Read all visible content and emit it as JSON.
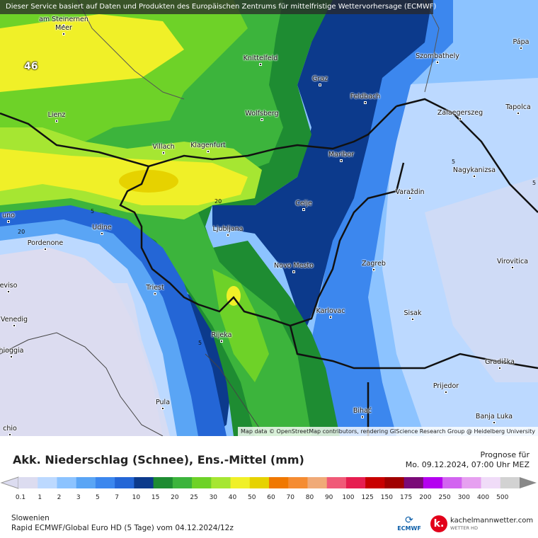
{
  "banner": "Dieser Service basiert auf Daten und Produkten des Europäischen Zentrums für mittelfristige Wettervorhersage (ECMWF)",
  "attribution": "Map data © OpenStreetMap contributors, rendering GIScience Research Group @ Heidelberg University",
  "marker": "46",
  "cities": [
    {
      "name": "am Steinernen",
      "id": "am-steinernen"
    },
    {
      "name": "Meer",
      "id": "meer"
    },
    {
      "name": "Knittelfeld",
      "id": "knittelfeld"
    },
    {
      "name": "Szombathely",
      "id": "szombathely"
    },
    {
      "name": "Pápa",
      "id": "papa"
    },
    {
      "name": "Graz",
      "id": "graz"
    },
    {
      "name": "Feldbach",
      "id": "feldbach"
    },
    {
      "name": "Lienz",
      "id": "lienz"
    },
    {
      "name": "Wolfsberg",
      "id": "wolfsberg"
    },
    {
      "name": "Zalaegerszeg",
      "id": "zalaegerszeg"
    },
    {
      "name": "Tapolca",
      "id": "tapolca"
    },
    {
      "name": "Villach",
      "id": "villach"
    },
    {
      "name": "Klagenfurt",
      "id": "klagenfurt"
    },
    {
      "name": "Maribor",
      "id": "maribor"
    },
    {
      "name": "Nagykanizsa",
      "id": "nagykanizsa"
    },
    {
      "name": "Varaždin",
      "id": "varazdin"
    },
    {
      "name": "Celje",
      "id": "celje"
    },
    {
      "name": "uno",
      "id": "uno"
    },
    {
      "name": "Udine",
      "id": "udine"
    },
    {
      "name": "Ljubljana",
      "id": "ljubljana"
    },
    {
      "name": "Pordenone",
      "id": "pordenone"
    },
    {
      "name": "Novo Mesto",
      "id": "novo-mesto"
    },
    {
      "name": "Zagreb",
      "id": "zagreb"
    },
    {
      "name": "Virovitica",
      "id": "virovitica"
    },
    {
      "name": "eviso",
      "id": "eviso"
    },
    {
      "name": "Triest",
      "id": "triest"
    },
    {
      "name": "Karlovac",
      "id": "karlovac"
    },
    {
      "name": "Sisak",
      "id": "sisak"
    },
    {
      "name": "Venedig",
      "id": "venedig"
    },
    {
      "name": "Rijeka",
      "id": "rijeka"
    },
    {
      "name": "Gradiška",
      "id": "gradiska"
    },
    {
      "name": "hioggia",
      "id": "hioggia"
    },
    {
      "name": "Prijedor",
      "id": "prijedor"
    },
    {
      "name": "Pula",
      "id": "pula"
    },
    {
      "name": "Bihać",
      "id": "bihac"
    },
    {
      "name": "Banja Luka",
      "id": "banja-luka"
    },
    {
      "name": "chio",
      "id": "chio"
    }
  ],
  "isolines": [
    {
      "label": "20",
      "id": "iso-20-a"
    },
    {
      "label": "20",
      "id": "iso-20-b"
    },
    {
      "label": "5",
      "id": "iso-5-a"
    },
    {
      "label": "5",
      "id": "iso-5-b"
    },
    {
      "label": "5",
      "id": "iso-5-c"
    },
    {
      "label": "5",
      "id": "iso-5-d"
    }
  ],
  "footer": {
    "title": "Akk. Niederschlag (Schnee), Ens.-Mittel (mm)",
    "prognose_label": "Prognose für",
    "prognose_date": "Mo. 09.12.2024, 07:00 Uhr MEZ",
    "region": "Slowenien",
    "run": "Rapid ECMWF/Global Euro HD  (5 Tage)  vom  04.12.2024/12z",
    "ecmwf_label": "ECMWF",
    "brand_name": "kachelmannwetter.com",
    "brand_sub": "WETTER HD"
  },
  "legend": {
    "ticks": [
      "0.1",
      "1",
      "2",
      "3",
      "5",
      "7",
      "10",
      "15",
      "20",
      "25",
      "30",
      "40",
      "50",
      "60",
      "70",
      "80",
      "90",
      "100",
      "125",
      "150",
      "175",
      "200",
      "250",
      "300",
      "400",
      "500"
    ],
    "colors": [
      "#dcdcf0",
      "#bcd9ff",
      "#8cc3ff",
      "#5aa5f5",
      "#3c87ee",
      "#2466d6",
      "#0c3a8c",
      "#1e8c32",
      "#3cb43c",
      "#6ed228",
      "#a6e632",
      "#f0f028",
      "#e6d200",
      "#f07800",
      "#f58c32",
      "#f0aa78",
      "#f05a78",
      "#e61e50",
      "#c80000",
      "#a00000",
      "#7a0a78",
      "#b400f0",
      "#d264f0",
      "#e6a0f0",
      "#f0dcf8",
      "#d2d2d2"
    ]
  },
  "map_colors": {
    "very_light": "#dcdcf0",
    "light_blue": "#bcd9ff",
    "mid_blue": "#5aa5f5",
    "blue": "#3c87ee",
    "dark_blue": "#0c3a8c",
    "dark_green": "#1e8c32",
    "green": "#3cb43c",
    "light_green": "#6ed228",
    "yellow_green": "#a6e632",
    "yellow": "#f0f028",
    "dark_yellow": "#e6d200"
  }
}
